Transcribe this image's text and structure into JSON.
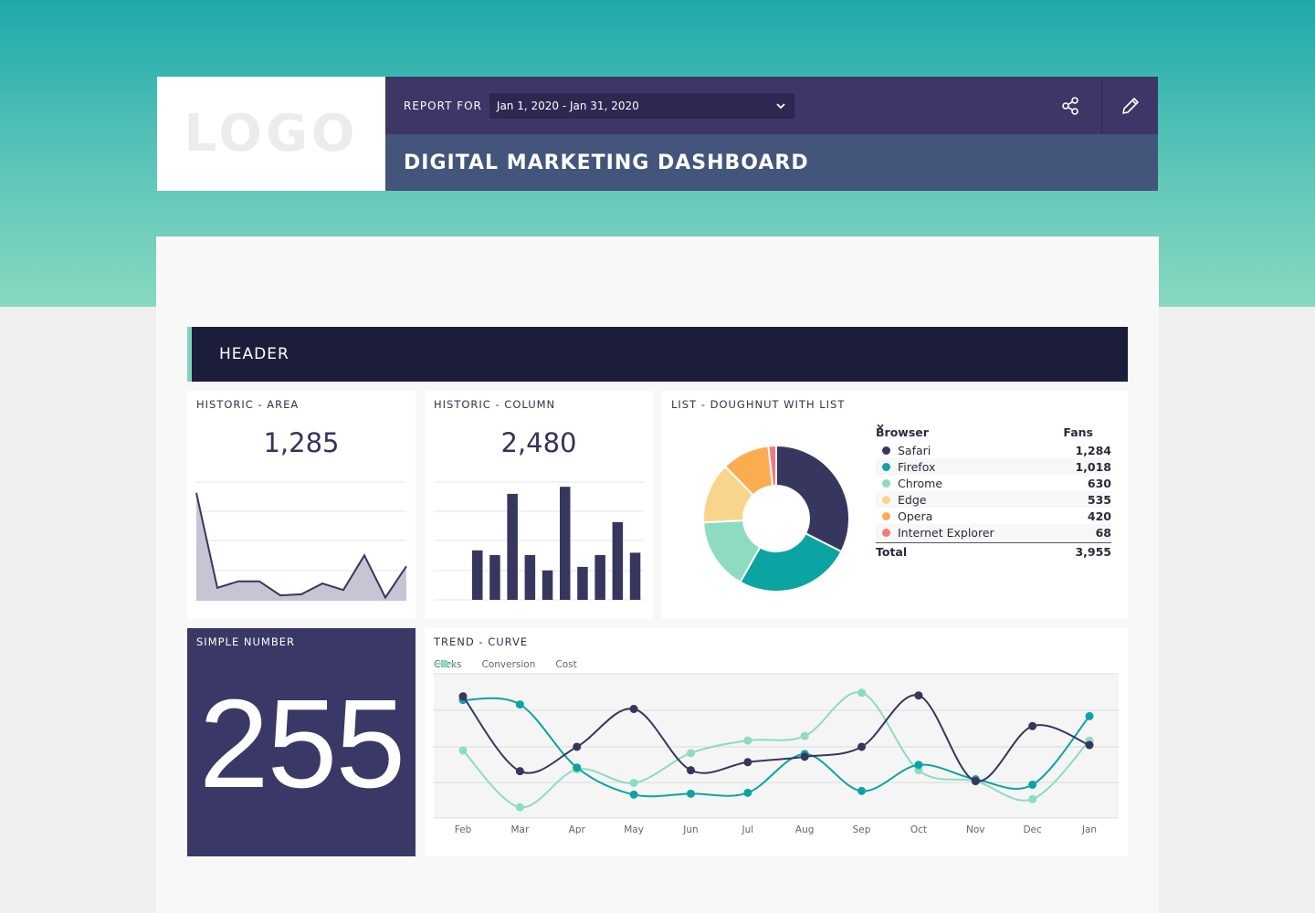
{
  "header": {
    "logo_text": "LOGO",
    "report_for_label": "REPORT FOR",
    "date_range": "Jan 1, 2020 - Jan 31, 2020",
    "title": "DIGITAL MARKETING DASHBOARD"
  },
  "section": {
    "title": "HEADER"
  },
  "historic_area": {
    "title": "HISTORIC - AREA",
    "value": "1,285",
    "chart_data": {
      "type": "area",
      "values": [
        100,
        12,
        18,
        18,
        5,
        6,
        16,
        10,
        42,
        3,
        32
      ],
      "ylim": [
        0,
        110
      ]
    }
  },
  "historic_column": {
    "title": "HISTORIC - COLUMN",
    "value": "2,480",
    "chart_data": {
      "type": "bar",
      "values": [
        42,
        38,
        90,
        38,
        25,
        96,
        28,
        38,
        66,
        40
      ],
      "ylim": [
        0,
        100
      ]
    }
  },
  "doughnut": {
    "title": "LIST - DOUGHNUT WITH LIST",
    "col_browser": "Browser",
    "col_fans": "Fans",
    "total_label": "Total",
    "total_value": "3,955",
    "chart_data": {
      "type": "pie",
      "categories": [
        "Safari",
        "Firefox",
        "Chrome",
        "Edge",
        "Opera",
        "Internet Explorer"
      ],
      "values": [
        1284,
        1018,
        630,
        535,
        420,
        68
      ],
      "value_labels": [
        "1,284",
        "1,018",
        "630",
        "535",
        "420",
        "68"
      ],
      "colors": [
        "#36365f",
        "#0ca3a3",
        "#8ddbc0",
        "#f7d58c",
        "#fbac50",
        "#f57a7a"
      ]
    }
  },
  "simple_number": {
    "title": "SIMPLE NUMBER",
    "value": "255"
  },
  "trend": {
    "title": "TREND - CURVE",
    "chart_data": {
      "type": "line",
      "categories": [
        "Feb",
        "Mar",
        "Apr",
        "May",
        "Jun",
        "Jul",
        "Aug",
        "Sep",
        "Oct",
        "Nov",
        "Dec",
        "Jan"
      ],
      "series": [
        {
          "name": "Clicks",
          "color": "#36365f",
          "values": [
            135,
            52,
            79,
            121,
            53,
            62,
            68,
            79,
            136,
            41,
            102,
            81
          ]
        },
        {
          "name": "Conversion",
          "color": "#0ca3a3",
          "values": [
            131,
            126,
            56,
            26,
            27,
            28,
            71,
            30,
            59,
            43,
            37,
            113
          ]
        },
        {
          "name": "Cost",
          "color": "#8ddbc0",
          "values": [
            75,
            12,
            54,
            39,
            72,
            86,
            91,
            139,
            53,
            41,
            21,
            86
          ]
        }
      ],
      "ylim": [
        0,
        160
      ]
    }
  }
}
